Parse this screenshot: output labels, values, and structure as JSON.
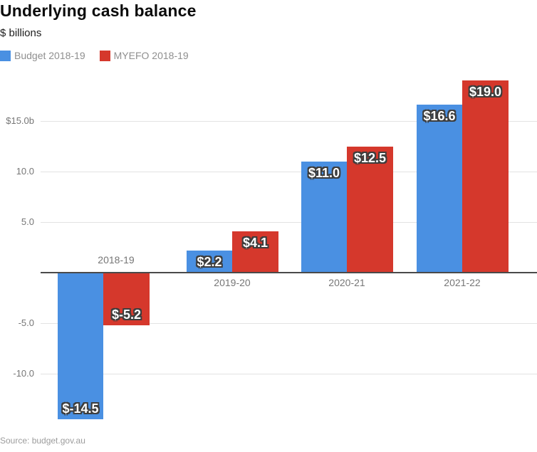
{
  "header": {
    "title": "Underlying cash balance",
    "subtitle": "$ billions"
  },
  "legend": {
    "items": [
      {
        "label": "Budget 2018-19",
        "color": "#4a90e2"
      },
      {
        "label": "MYEFO 2018-19",
        "color": "#d5382c"
      }
    ]
  },
  "chart_data": {
    "type": "bar",
    "title": "Underlying cash balance",
    "unit": "$ billions",
    "categories": [
      "2018-19",
      "2019-20",
      "2020-21",
      "2021-22"
    ],
    "series": [
      {
        "name": "Budget 2018-19",
        "color": "#4a90e2",
        "values": [
          -14.5,
          2.2,
          11.0,
          16.6
        ],
        "value_labels": [
          "$-14.5",
          "$2.2",
          "$11.0",
          "$16.6"
        ]
      },
      {
        "name": "MYEFO 2018-19",
        "color": "#d5382c",
        "values": [
          -5.2,
          4.1,
          12.5,
          19.0
        ],
        "value_labels": [
          "$-5.2",
          "$4.1",
          "$12.5",
          "$19.0"
        ]
      }
    ],
    "y_axis": {
      "ticks": [
        {
          "value": 15,
          "label": "$15.0b"
        },
        {
          "value": 10,
          "label": "10.0"
        },
        {
          "value": 5,
          "label": "5.0"
        },
        {
          "value": -5,
          "label": "-5.0"
        },
        {
          "value": -10,
          "label": "-10.0"
        }
      ],
      "range": [
        -16.5,
        20.5
      ],
      "grid": true
    },
    "legend_position": "top",
    "value_label_style": {
      "color": "#ffffff",
      "outline": "#3d3d3d"
    },
    "grid_color": "#e3e3e3",
    "axis_color": "#4a4a4a"
  },
  "footer": {
    "source": "Source: budget.gov.au"
  }
}
